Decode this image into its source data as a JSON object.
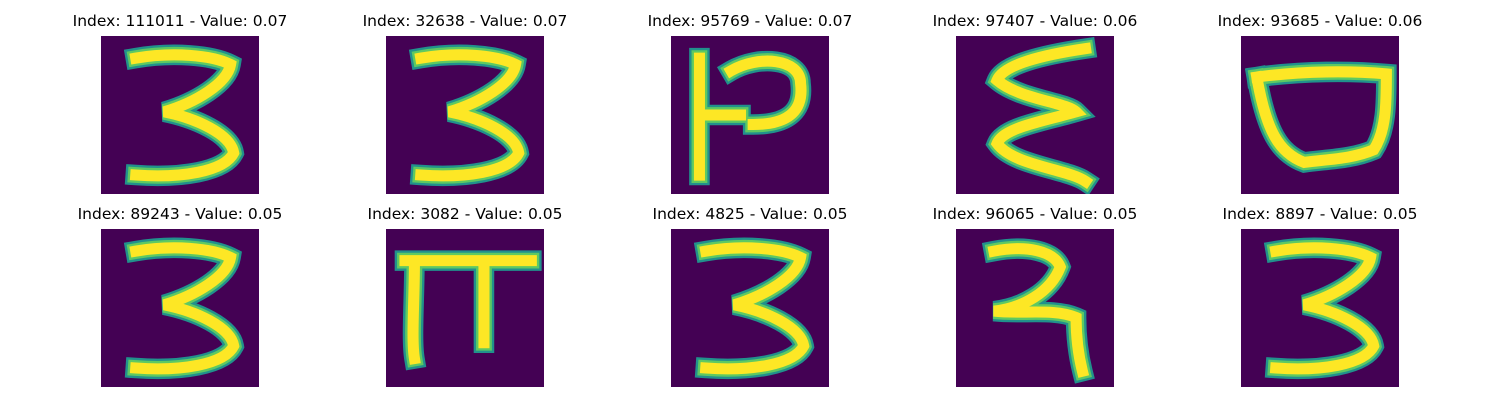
{
  "colors": {
    "background": "#440154",
    "stroke_edge": "#21918c",
    "stroke_mid": "#5ec962",
    "stroke_core": "#fde725"
  },
  "panels": [
    {
      "title": "Index: 111011 - Value: 0.07",
      "glyph": "three"
    },
    {
      "title": "Index: 32638 - Value: 0.07",
      "glyph": "three"
    },
    {
      "title": "Index: 95769 - Value: 0.07",
      "glyph": "p-shape"
    },
    {
      "title": "Index: 97407 - Value: 0.06",
      "glyph": "zigzag"
    },
    {
      "title": "Index: 93685 - Value: 0.06",
      "glyph": "bowl"
    },
    {
      "title": "Index: 89243 - Value: 0.05",
      "glyph": "three"
    },
    {
      "title": "Index: 3082 - Value: 0.05",
      "glyph": "pi-shape"
    },
    {
      "title": "Index: 4825 - Value: 0.05",
      "glyph": "three"
    },
    {
      "title": "Index: 96065 - Value: 0.05",
      "glyph": "hook"
    },
    {
      "title": "Index: 8897 - Value: 0.05",
      "glyph": "three"
    }
  ]
}
